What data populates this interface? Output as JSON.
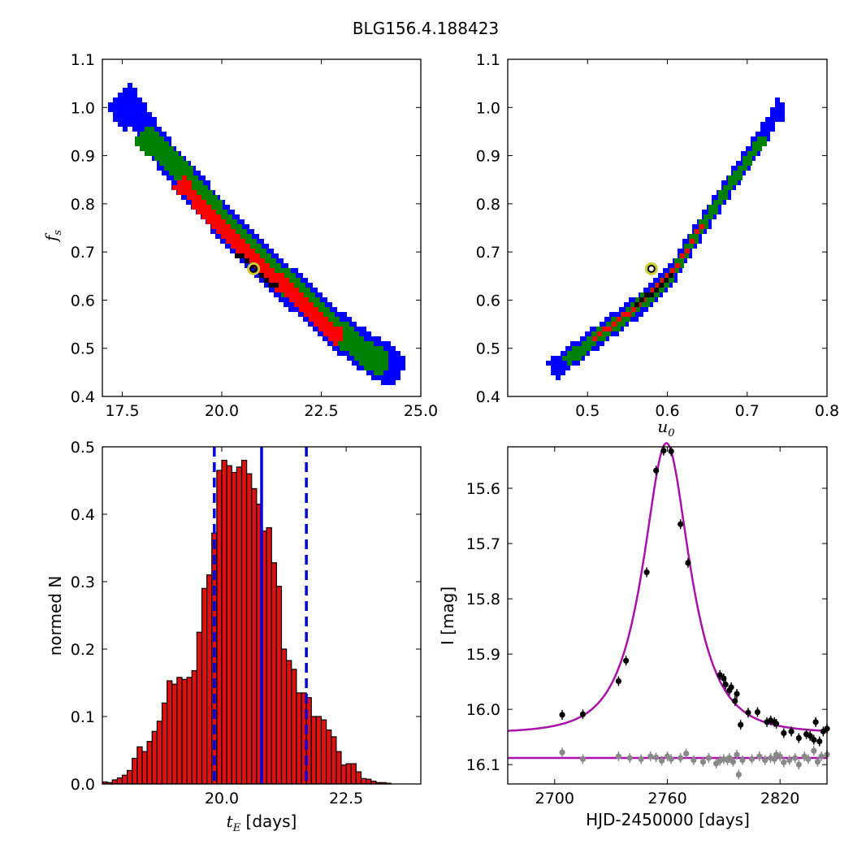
{
  "figure": {
    "title": "BLG156.4.188423"
  },
  "colors": {
    "sigma3": "#0000ff",
    "sigma2": "#008000",
    "sigma1": "#ff0000",
    "best": "#000000",
    "marker": "#cccc33",
    "hist": "#dd1111",
    "vline": "#0000dd",
    "model": "#aa11aa",
    "data_main": "#000000",
    "data_alt": "#888888"
  },
  "chart_data": [
    {
      "id": "fs_vs_tE",
      "type": "heatmap",
      "title": "",
      "xlabel": "",
      "ylabel_main": "f",
      "ylabel_sub": "s",
      "xlim": [
        17.0,
        25.0
      ],
      "ylim": [
        0.4,
        1.1
      ],
      "xticks": [
        "17.5",
        "20.0",
        "22.5",
        "25.0"
      ],
      "xtick_values": [
        17.5,
        20.0,
        22.5,
        25.0
      ],
      "yticks": [
        "0.4",
        "0.5",
        "0.6",
        "0.7",
        "0.8",
        "0.9",
        "1.0",
        "1.1"
      ],
      "ytick_values": [
        0.4,
        0.5,
        0.6,
        0.7,
        0.8,
        0.9,
        1.0,
        1.1
      ],
      "levels": [
        {
          "name": "3-sigma",
          "color": "blue",
          "ridge": [
            [
              17.7,
              1.0
            ],
            [
              18.3,
              0.925
            ],
            [
              19.0,
              0.85
            ],
            [
              19.8,
              0.78
            ],
            [
              20.5,
              0.72
            ],
            [
              21.3,
              0.655
            ],
            [
              22.0,
              0.6
            ],
            [
              22.8,
              0.54
            ],
            [
              23.5,
              0.495
            ],
            [
              24.0,
              0.47
            ]
          ],
          "width_x": 0.55
        },
        {
          "name": "2-sigma",
          "color": "green",
          "ridge": [
            [
              18.2,
              0.93
            ],
            [
              18.8,
              0.88
            ],
            [
              19.5,
              0.81
            ],
            [
              20.3,
              0.735
            ],
            [
              21.1,
              0.67
            ],
            [
              21.9,
              0.61
            ],
            [
              22.6,
              0.555
            ],
            [
              23.3,
              0.505
            ],
            [
              23.8,
              0.475
            ]
          ],
          "width_x": 0.38
        },
        {
          "name": "1-sigma",
          "color": "red",
          "ridge": [
            [
              19.0,
              0.835
            ],
            [
              19.6,
              0.785
            ],
            [
              20.3,
              0.725
            ],
            [
              21.0,
              0.665
            ],
            [
              21.7,
              0.615
            ],
            [
              22.3,
              0.565
            ],
            [
              22.8,
              0.53
            ]
          ],
          "width_x": 0.24
        },
        {
          "name": "best",
          "color": "black",
          "ridge": [
            [
              20.4,
              0.695
            ],
            [
              20.7,
              0.67
            ],
            [
              21.0,
              0.645
            ],
            [
              21.3,
              0.625
            ]
          ],
          "width_x": 0.08
        }
      ],
      "best_fit": {
        "x": 20.8,
        "y": 0.665
      }
    },
    {
      "id": "fs_vs_u0",
      "type": "heatmap",
      "title": "",
      "xlabel_main": "u",
      "xlabel_sub": "0",
      "ylabel": "",
      "xlim": [
        0.4,
        0.8
      ],
      "ylim": [
        0.4,
        1.1
      ],
      "xticks": [
        "0.5",
        "0.6",
        "0.7",
        "0.8"
      ],
      "xtick_values": [
        0.5,
        0.6,
        0.7,
        0.8
      ],
      "yticks": [
        "0.4",
        "0.5",
        "0.6",
        "0.7",
        "0.8",
        "0.9",
        "1.0",
        "1.1"
      ],
      "ytick_values": [
        0.4,
        0.5,
        0.6,
        0.7,
        0.8,
        0.9,
        1.0,
        1.1
      ],
      "levels": [
        {
          "name": "3-sigma",
          "color": "blue",
          "ridge": [
            [
              0.46,
              0.465
            ],
            [
              0.5,
              0.515
            ],
            [
              0.55,
              0.575
            ],
            [
              0.6,
              0.65
            ],
            [
              0.65,
              0.78
            ],
            [
              0.7,
              0.9
            ],
            [
              0.735,
              0.995
            ]
          ],
          "width_x": 0.012
        },
        {
          "name": "2-sigma",
          "color": "green",
          "ridge": [
            [
              0.475,
              0.48
            ],
            [
              0.5,
              0.515
            ],
            [
              0.55,
              0.575
            ],
            [
              0.6,
              0.65
            ],
            [
              0.65,
              0.78
            ],
            [
              0.7,
              0.9
            ],
            [
              0.715,
              0.93
            ]
          ],
          "width_x": 0.007
        },
        {
          "name": "1-sigma",
          "color": "red",
          "ridge": [
            [
              0.51,
              0.525
            ],
            [
              0.55,
              0.575
            ],
            [
              0.6,
              0.65
            ],
            [
              0.64,
              0.75
            ]
          ],
          "width_x": 0.004
        },
        {
          "name": "best",
          "color": "black",
          "ridge": [
            [
              0.56,
              0.59
            ],
            [
              0.6,
              0.65
            ]
          ],
          "width_x": 0.0015
        }
      ],
      "best_fit": {
        "x": 0.58,
        "y": 0.665
      }
    },
    {
      "id": "tE_histogram",
      "type": "bar",
      "title": "",
      "xlabel_main": "t",
      "xlabel_sub": "E",
      "xlabel_rest": " [days]",
      "ylabel": "normed N",
      "xlim": [
        17.6,
        24.0
      ],
      "ylim": [
        0.0,
        0.5
      ],
      "xticks": [
        "20.0",
        "22.5"
      ],
      "xtick_values": [
        20.0,
        22.5
      ],
      "yticks": [
        "0.0",
        "0.1",
        "0.2",
        "0.3",
        "0.4",
        "0.5"
      ],
      "ytick_values": [
        0.0,
        0.1,
        0.2,
        0.3,
        0.4,
        0.5
      ],
      "bin_start": 17.6,
      "bin_width": 0.1,
      "values": [
        0.003,
        0.002,
        0.006,
        0.009,
        0.013,
        0.02,
        0.038,
        0.055,
        0.048,
        0.063,
        0.078,
        0.093,
        0.12,
        0.153,
        0.148,
        0.158,
        0.155,
        0.158,
        0.168,
        0.225,
        0.29,
        0.31,
        0.372,
        0.465,
        0.48,
        0.472,
        0.462,
        0.47,
        0.48,
        0.46,
        0.438,
        0.415,
        0.375,
        0.38,
        0.328,
        0.293,
        0.2,
        0.183,
        0.17,
        0.135,
        0.135,
        0.128,
        0.1,
        0.1,
        0.095,
        0.08,
        0.07,
        0.048,
        0.028,
        0.03,
        0.03,
        0.018,
        0.008,
        0.007,
        0.004,
        0.002,
        0.002,
        0.001,
        0.0
      ],
      "median": 20.8,
      "lower": 19.85,
      "upper": 21.7
    },
    {
      "id": "light_curve",
      "type": "scatter",
      "title": "",
      "xlabel": "HJD-2450000 [days]",
      "ylabel": "I [mag]",
      "xlim": [
        2675,
        2845
      ],
      "ylim": [
        16.135,
        15.525
      ],
      "xticks": [
        "2700",
        "2760",
        "2820"
      ],
      "xtick_values": [
        2700,
        2760,
        2820
      ],
      "yticks": [
        "15.6",
        "15.7",
        "15.8",
        "15.9",
        "16.0",
        "16.1"
      ],
      "ytick_values": [
        15.6,
        15.7,
        15.8,
        15.9,
        16.0,
        16.1
      ],
      "model": {
        "t0": 2759.5,
        "tE": 20.8,
        "u0": 0.58,
        "baseline": 16.043,
        "fs": 0.665
      },
      "alt_baseline": 16.088,
      "series": [
        {
          "color": "black",
          "points": [
            [
              2704,
              16.01
            ],
            [
              2715,
              16.009
            ],
            [
              2734,
              15.949
            ],
            [
              2738,
              15.912
            ],
            [
              2749,
              15.752
            ],
            [
              2754,
              15.568
            ],
            [
              2758,
              15.532
            ],
            [
              2762,
              15.533
            ],
            [
              2767,
              15.665
            ],
            [
              2771,
              15.735
            ],
            [
              2788,
              15.938
            ],
            [
              2790,
              15.944
            ],
            [
              2791,
              15.955
            ],
            [
              2793,
              15.966
            ],
            [
              2794,
              15.96
            ],
            [
              2796,
              15.985
            ],
            [
              2797,
              15.972
            ],
            [
              2799,
              16.028
            ],
            [
              2803,
              16.006
            ],
            [
              2808,
              16.005
            ],
            [
              2813,
              16.023
            ],
            [
              2815,
              16.02
            ],
            [
              2817,
              16.023
            ],
            [
              2818,
              16.026
            ],
            [
              2822,
              16.043
            ],
            [
              2826,
              16.04
            ],
            [
              2830,
              16.052
            ],
            [
              2834,
              16.045
            ],
            [
              2836,
              16.048
            ],
            [
              2838,
              16.055
            ],
            [
              2839,
              16.023
            ],
            [
              2841,
              16.058
            ],
            [
              2843,
              16.04
            ],
            [
              2845,
              16.035
            ]
          ]
        },
        {
          "color": "gray",
          "points": [
            [
              2704,
              16.078
            ],
            [
              2715,
              16.09
            ],
            [
              2734,
              16.085
            ],
            [
              2740,
              16.088
            ],
            [
              2746,
              16.09
            ],
            [
              2751,
              16.085
            ],
            [
              2754,
              16.087
            ],
            [
              2757,
              16.093
            ],
            [
              2760,
              16.085
            ],
            [
              2762,
              16.09
            ],
            [
              2767,
              16.088
            ],
            [
              2770,
              16.08
            ],
            [
              2774,
              16.092
            ],
            [
              2779,
              16.095
            ],
            [
              2782,
              16.088
            ],
            [
              2786,
              16.098
            ],
            [
              2788,
              16.093
            ],
            [
              2790,
              16.09
            ],
            [
              2792,
              16.092
            ],
            [
              2793,
              16.088
            ],
            [
              2795,
              16.095
            ],
            [
              2797,
              16.082
            ],
            [
              2798,
              16.118
            ],
            [
              2800,
              16.092
            ],
            [
              2805,
              16.09
            ],
            [
              2809,
              16.085
            ],
            [
              2812,
              16.092
            ],
            [
              2815,
              16.088
            ],
            [
              2817,
              16.09
            ],
            [
              2818,
              16.082
            ],
            [
              2820,
              16.085
            ],
            [
              2822,
              16.096
            ],
            [
              2825,
              16.092
            ],
            [
              2828,
              16.088
            ],
            [
              2830,
              16.1
            ],
            [
              2833,
              16.085
            ],
            [
              2835,
              16.09
            ],
            [
              2838,
              16.075
            ],
            [
              2840,
              16.095
            ],
            [
              2842,
              16.085
            ],
            [
              2845,
              16.082
            ]
          ]
        }
      ]
    }
  ]
}
